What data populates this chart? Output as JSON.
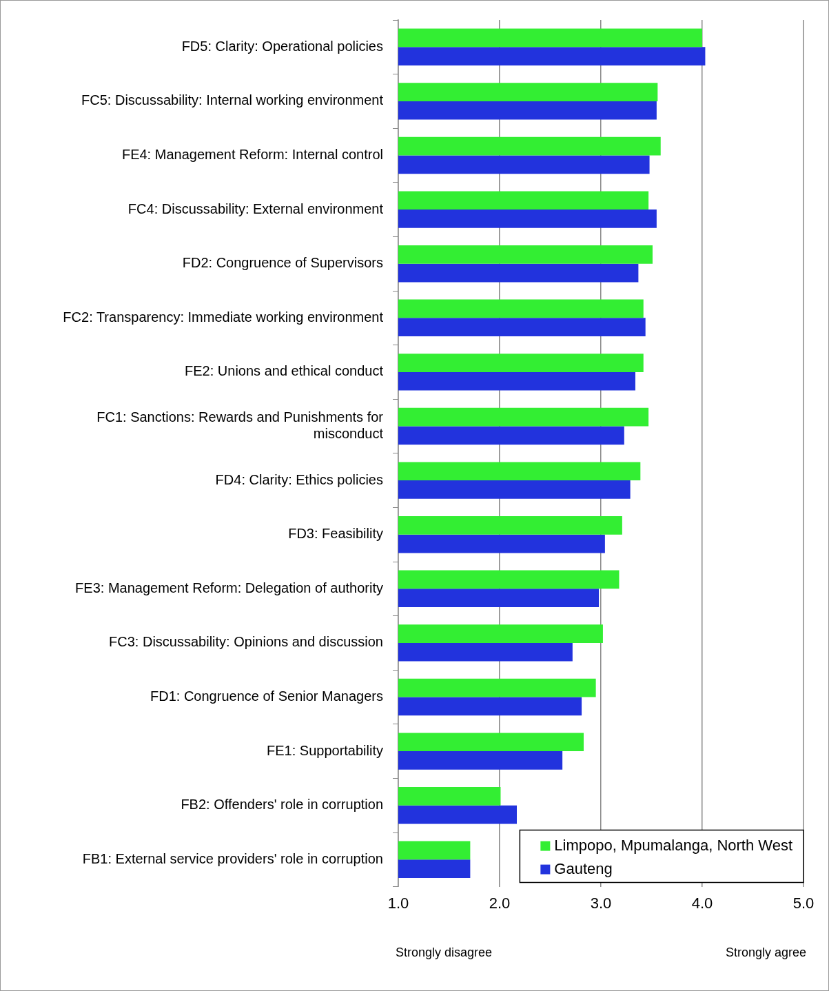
{
  "chart_data": {
    "type": "bar",
    "orientation": "horizontal",
    "categories": [
      "FD5: Clarity: Operational policies",
      "FC5: Discussability: Internal working environment",
      "FE4: Management Reform: Internal control",
      "FC4: Discussability: External environment",
      "FD2: Congruence of Supervisors",
      "FC2: Transparency: Immediate working environment",
      "FE2: Unions and ethical conduct",
      "FC1: Sanctions: Rewards and Punishments for misconduct",
      "FD4: Clarity: Ethics policies",
      "FD3: Feasibility",
      "FE3: Management Reform: Delegation of authority",
      "FC3: Discussability: Opinions and discussion",
      "FD1: Congruence of Senior Managers",
      "FE1: Supportability",
      "FB2: Offenders' role in corruption",
      "FB1: External service providers' role in corruption"
    ],
    "series": [
      {
        "name": "Limpopo, Mpumalanga, North West",
        "color": "#33ee33",
        "values": [
          4.0,
          3.56,
          3.59,
          3.47,
          3.51,
          3.42,
          3.42,
          3.47,
          3.39,
          3.21,
          3.18,
          3.02,
          2.95,
          2.83,
          2.01,
          1.71
        ]
      },
      {
        "name": "Gauteng",
        "color": "#2233dd",
        "values": [
          4.03,
          3.55,
          3.48,
          3.55,
          3.37,
          3.44,
          3.34,
          3.23,
          3.29,
          3.04,
          2.98,
          2.72,
          2.81,
          2.62,
          2.17,
          1.71
        ]
      }
    ],
    "xlim": [
      1,
      5
    ],
    "xticks": [
      {
        "value": 1,
        "label": "1.0"
      },
      {
        "value": 2,
        "label": "2.0"
      },
      {
        "value": 3,
        "label": "3.0"
      },
      {
        "value": 4,
        "label": "4.0"
      },
      {
        "value": 5,
        "label": "5.0"
      }
    ],
    "grid": "x",
    "legend": "bottom right",
    "annotations": [
      "Strongly disagree",
      "Strongly agree"
    ]
  }
}
